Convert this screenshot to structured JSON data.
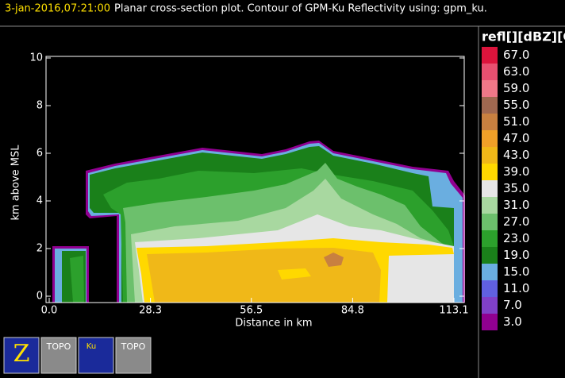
{
  "chart_data": {
    "type": "contour",
    "timestamp": "3-jan-2016,07:21:00",
    "title": "Planar cross-section plot.  Contour of GPM-Ku Reflectivity using: gpm_ku.",
    "xlabel": "Distance in km",
    "ylabel": "km above MSL",
    "xlim": [
      0,
      113.1
    ],
    "ylim": [
      0,
      10
    ],
    "xticks": [
      {
        "value": 0,
        "label": "0.0"
      },
      {
        "value": 28.3,
        "label": "28.3"
      },
      {
        "value": 56.5,
        "label": "56.5"
      },
      {
        "value": 84.8,
        "label": "84.8"
      },
      {
        "value": 113.1,
        "label": "113.1"
      }
    ],
    "yticks": [
      0,
      2,
      4,
      6,
      8,
      10
    ],
    "colorbar": {
      "title": "refl[][dBZ][G",
      "ticks": [
        {
          "value": 67,
          "label": "67.0"
        },
        {
          "value": 63,
          "label": "63.0"
        },
        {
          "value": 59,
          "label": "59.0"
        },
        {
          "value": 55,
          "label": "55.0"
        },
        {
          "value": 51,
          "label": "51.0"
        },
        {
          "value": 47,
          "label": "47.0"
        },
        {
          "value": 43,
          "label": "43.0"
        },
        {
          "value": 39,
          "label": "39.0"
        },
        {
          "value": 35,
          "label": "35.0"
        },
        {
          "value": 31,
          "label": "31.0"
        },
        {
          "value": 27,
          "label": "27.0"
        },
        {
          "value": 23,
          "label": "23.0"
        },
        {
          "value": 19,
          "label": "19.0"
        },
        {
          "value": 15,
          "label": "15.0"
        },
        {
          "value": 11,
          "label": "11.0"
        },
        {
          "value": 7,
          "label": "7.0"
        },
        {
          "value": 3,
          "label": "3.0"
        }
      ],
      "colors": [
        "#dc143c",
        "#e85070",
        "#f07888",
        "#a06850",
        "#c88040",
        "#f0a028",
        "#f0b818",
        "#ffd800",
        "#e6e6e6",
        "#a8d8a0",
        "#6cc06c",
        "#2ca02c",
        "#1a801a",
        "#6aaee0",
        "#6060e0",
        "#8040c8",
        "#900090"
      ]
    },
    "toolbar": [
      "Z",
      "TOPO",
      "Ku",
      "TOPO"
    ]
  }
}
